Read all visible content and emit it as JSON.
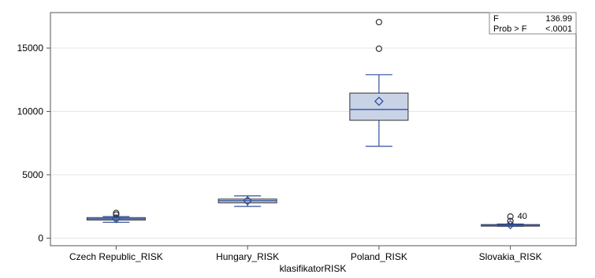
{
  "chart_data": {
    "type": "box",
    "xlabel": "klasifikatorRISK",
    "ylabel": "",
    "ylim": [
      -600,
      17800
    ],
    "y_ticks": [
      0,
      5000,
      10000,
      15000
    ],
    "y_tick_labels": [
      "0",
      "5000",
      "10000",
      "15000"
    ],
    "grid": true,
    "categories": [
      "Czech Republic_RISK",
      "Hungary_RISK",
      "Poland_RISK",
      "Slovakia_RISK"
    ],
    "boxes": [
      {
        "category": "Czech Republic_RISK",
        "whisker_low": 1250,
        "q1": 1430,
        "median": 1520,
        "q3": 1620,
        "whisker_high": 1700,
        "mean": 1540,
        "outliers": [
          1850,
          1980
        ]
      },
      {
        "category": "Hungary_RISK",
        "whisker_low": 2500,
        "q1": 2780,
        "median": 2950,
        "q3": 3080,
        "whisker_high": 3330,
        "mean": 2950,
        "outliers": []
      },
      {
        "category": "Poland_RISK",
        "whisker_low": 7250,
        "q1": 9300,
        "median": 10150,
        "q3": 11450,
        "whisker_high": 12900,
        "mean": 10800,
        "outliers": [
          14950,
          17050
        ]
      },
      {
        "category": "Slovakia_RISK",
        "whisker_low": 940,
        "q1": 980,
        "median": 1030,
        "q3": 1070,
        "whisker_high": 1110,
        "mean": 1060,
        "outliers": [
          1350,
          1700
        ]
      }
    ],
    "annotations": [
      {
        "text": "40",
        "category": "Slovakia_RISK",
        "y": 1700
      }
    ],
    "stats_box": {
      "row1_label": "F",
      "row1_value": "136.99",
      "row2_label": "Prob > F",
      "row2_value": "<.0001"
    },
    "colors": {
      "box_fill": "#c9d3e6",
      "box_stroke": "#3050a0",
      "median": "#3050a0",
      "mean": "#3050a0",
      "outlier": "#333333",
      "grid": "#e6e6e6"
    }
  }
}
